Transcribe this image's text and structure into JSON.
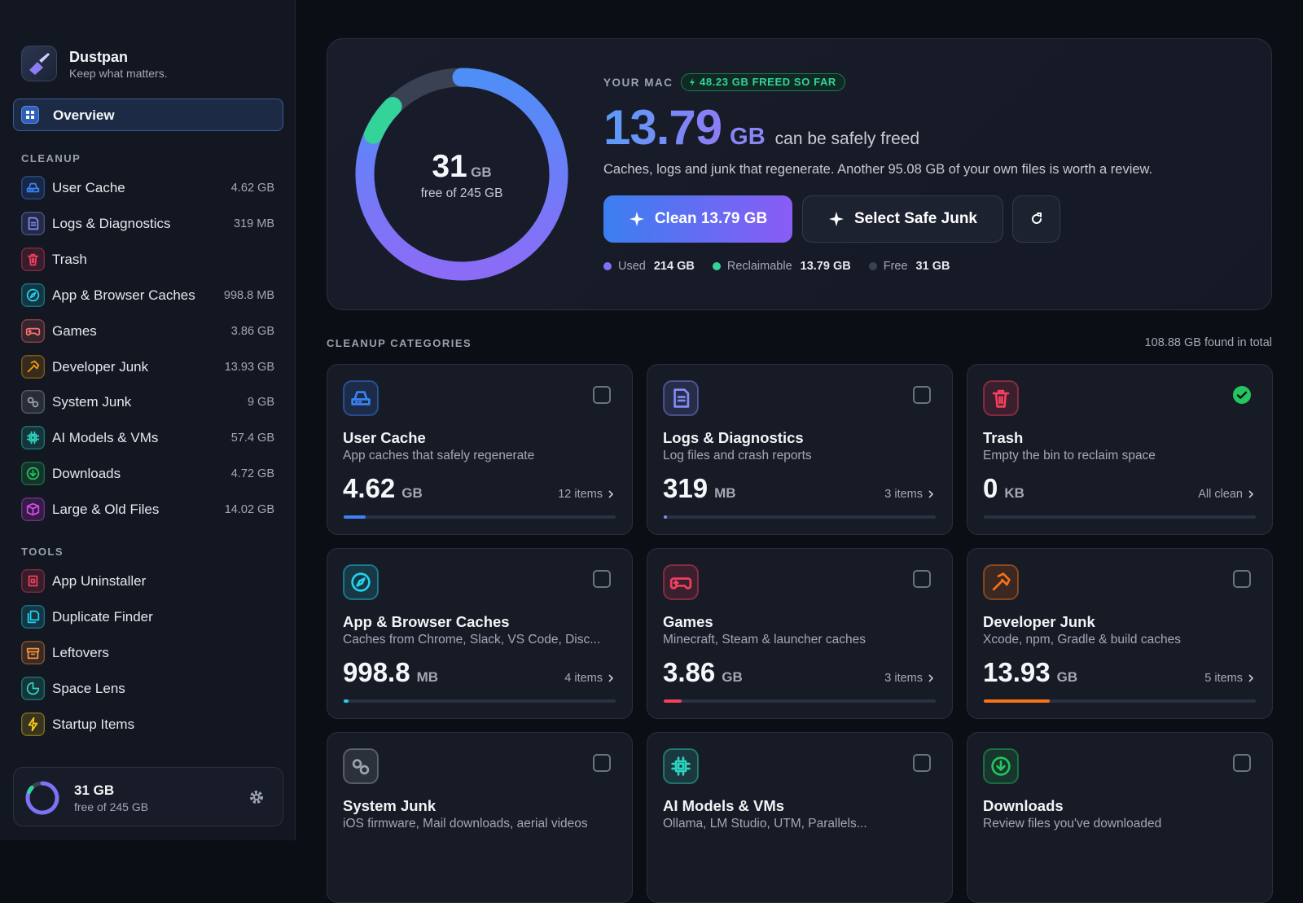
{
  "app": {
    "name": "Dustpan",
    "tagline": "Keep what matters."
  },
  "sidebar": {
    "overview": "Overview",
    "cleanup_heading": "CLEANUP",
    "cleanup": [
      {
        "label": "User Cache",
        "size": 4.62,
        "unit": "GB",
        "color": "#3b82f6"
      },
      {
        "label": "Logs & Diagnostics",
        "size": 319,
        "unit": "MB",
        "color": "#818cf8"
      },
      {
        "label": "Trash",
        "color": "#f43f5e"
      },
      {
        "label": "App & Browser Caches",
        "size": 998.8,
        "unit": "MB",
        "color": "#22d3ee"
      },
      {
        "label": "Games",
        "size": 3.86,
        "unit": "GB",
        "color": "#f87171"
      },
      {
        "label": "Developer Junk",
        "size": 13.93,
        "unit": "GB",
        "color": "#f59e0b"
      },
      {
        "label": "System Junk",
        "size": 9,
        "unit": "GB",
        "color": "#9ca3af"
      },
      {
        "label": "AI Models & VMs",
        "size": 57.4,
        "unit": "GB",
        "color": "#2dd4bf"
      },
      {
        "label": "Downloads",
        "size": 4.72,
        "unit": "GB",
        "color": "#22c55e"
      },
      {
        "label": "Large & Old Files",
        "size": 14.02,
        "unit": "GB",
        "color": "#d946ef"
      }
    ],
    "tools_heading": "TOOLS",
    "tools": [
      {
        "label": "App Uninstaller",
        "color": "#f43f5e"
      },
      {
        "label": "Duplicate Finder",
        "color": "#22d3ee"
      },
      {
        "label": "Leftovers",
        "color": "#fb923c"
      },
      {
        "label": "Space Lens",
        "color": "#2dd4bf"
      },
      {
        "label": "Startup Items",
        "color": "#facc15"
      }
    ],
    "footer": {
      "free": "31 GB",
      "caption": "free of 245 GB"
    }
  },
  "hero": {
    "eyebrow": "YOUR MAC",
    "badge": "48.23 GB FREED SO FAR",
    "amount": "13.79",
    "unit": "GB",
    "tail": "can be safely freed",
    "description": "Caches, logs and junk that regenerate. Another 95.08 GB of your own files is worth a review.",
    "clean_button": "Clean 13.79 GB",
    "select_button": "Select Safe Junk",
    "ring": {
      "free": "31",
      "unit": "GB",
      "caption": "free of 245 GB",
      "total": 245,
      "segments": [
        {
          "name": "Used",
          "value": 214,
          "value_label": "214 GB",
          "color": "#7f72f6"
        },
        {
          "name": "Reclaimable",
          "value": 13.79,
          "value_label": "13.79 GB",
          "color": "#34d399"
        },
        {
          "name": "Free",
          "value": 31,
          "value_label": "31 GB",
          "color": "#3a4152"
        }
      ]
    }
  },
  "categories": {
    "heading": "CLEANUP CATEGORIES",
    "total": "108.88 GB found in total",
    "cards": [
      {
        "title": "User Cache",
        "description": "App caches that safely regenerate",
        "value": 4.62,
        "unit": "GB",
        "meta": "12 items",
        "color": "#3b82f6",
        "checked": false
      },
      {
        "title": "Logs & Diagnostics",
        "description": "Log files and crash reports",
        "value": 319,
        "unit": "MB",
        "meta": "3 items",
        "color": "#818cf8",
        "checked": false
      },
      {
        "title": "Trash",
        "description": "Empty the bin to reclaim space",
        "value": 0,
        "unit": "KB",
        "meta": "All clean",
        "color": "#f43f5e",
        "checked": true
      },
      {
        "title": "App & Browser Caches",
        "description": "Caches from Chrome, Slack, VS Code, Disc...",
        "value": 998.8,
        "unit": "MB",
        "meta": "4 items",
        "color": "#22d3ee",
        "checked": false
      },
      {
        "title": "Games",
        "description": "Minecraft, Steam & launcher caches",
        "value": 3.86,
        "unit": "GB",
        "meta": "3 items",
        "color": "#f43f5e",
        "checked": false
      },
      {
        "title": "Developer Junk",
        "description": "Xcode, npm, Gradle & build caches",
        "value": 13.93,
        "unit": "GB",
        "meta": "5 items",
        "color": "#f97316",
        "checked": false
      },
      {
        "title": "System Junk",
        "description": "iOS firmware, Mail downloads, aerial videos",
        "color": "#9ca3af",
        "checked": false
      },
      {
        "title": "AI Models & VMs",
        "description": "Ollama, LM Studio, UTM, Parallels...",
        "color": "#2dd4bf",
        "checked": false
      },
      {
        "title": "Downloads",
        "description": "Review files you've downloaded",
        "color": "#22c55e",
        "checked": false
      }
    ]
  }
}
